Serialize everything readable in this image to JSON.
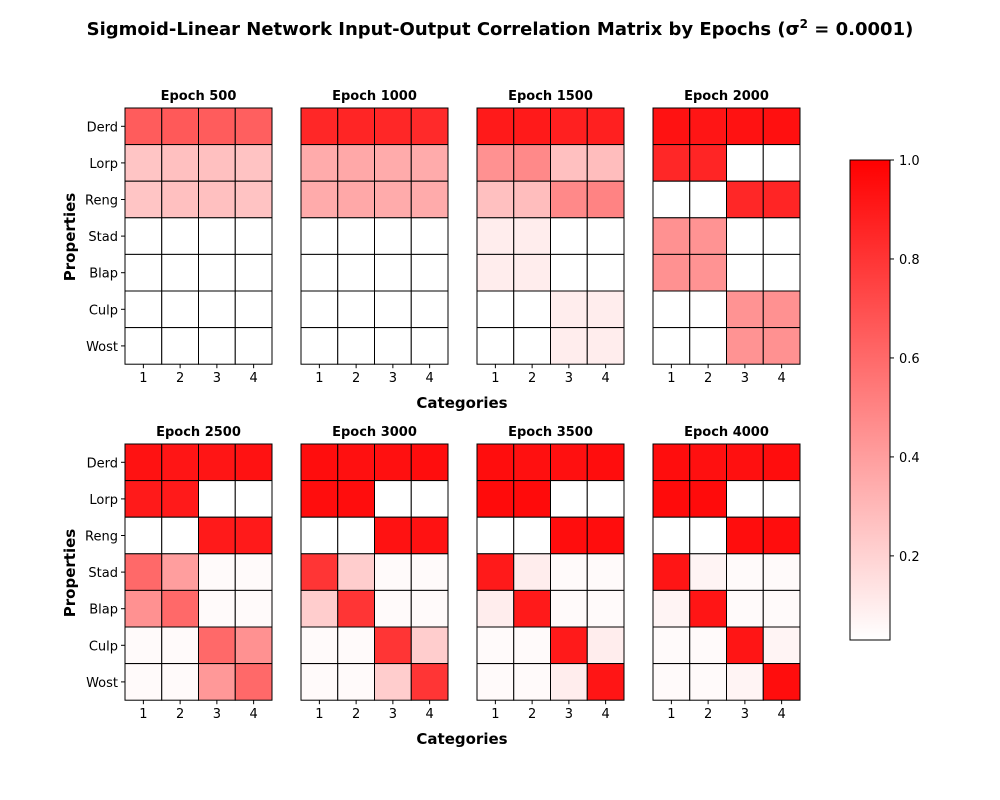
{
  "title_main": "Sigmoid-Linear Network Input-Output Correlation Matrix by Epochs (σ",
  "title_sup": "2",
  "title_tail": " = 0.0001)",
  "xlabel": "Categories",
  "ylabel": "Properties",
  "colors": {
    "high": "#ff0000",
    "low": "#ffffff",
    "grid": "#000000"
  },
  "chart_data": {
    "type": "heatmap",
    "title": "Sigmoid-Linear Network Input-Output Correlation Matrix by Epochs (σ² = 0.0001)",
    "xlabel": "Categories",
    "ylabel": "Properties",
    "rows": [
      "Derd",
      "Lorp",
      "Reng",
      "Stad",
      "Blap",
      "Culp",
      "Wost"
    ],
    "columns": [
      "1",
      "2",
      "3",
      "4"
    ],
    "colormap": "white-to-red",
    "colorbar": {
      "range": [
        0.03,
        1.0
      ],
      "ticks": [
        "0.2",
        "0.4",
        "0.6",
        "0.8",
        "1.0"
      ],
      "tick_values": [
        0.2,
        0.4,
        0.6,
        0.8,
        1.0
      ]
    },
    "panels": [
      {
        "label": "Epoch 500",
        "values": [
          [
            0.65,
            0.66,
            0.65,
            0.64
          ],
          [
            0.25,
            0.27,
            0.27,
            0.26
          ],
          [
            0.25,
            0.27,
            0.27,
            0.26
          ],
          [
            0.03,
            0.03,
            0.03,
            0.03
          ],
          [
            0.03,
            0.03,
            0.03,
            0.03
          ],
          [
            0.03,
            0.03,
            0.03,
            0.03
          ],
          [
            0.03,
            0.03,
            0.03,
            0.03
          ]
        ]
      },
      {
        "label": "Epoch 1000",
        "values": [
          [
            0.85,
            0.86,
            0.85,
            0.84
          ],
          [
            0.35,
            0.36,
            0.35,
            0.35
          ],
          [
            0.35,
            0.36,
            0.35,
            0.35
          ],
          [
            0.03,
            0.03,
            0.03,
            0.03
          ],
          [
            0.03,
            0.03,
            0.03,
            0.03
          ],
          [
            0.03,
            0.03,
            0.03,
            0.03
          ],
          [
            0.03,
            0.03,
            0.03,
            0.03
          ]
        ]
      },
      {
        "label": "Epoch 1500",
        "values": [
          [
            0.9,
            0.9,
            0.88,
            0.88
          ],
          [
            0.45,
            0.48,
            0.27,
            0.28
          ],
          [
            0.27,
            0.28,
            0.48,
            0.5
          ],
          [
            0.1,
            0.1,
            0.03,
            0.03
          ],
          [
            0.1,
            0.1,
            0.03,
            0.03
          ],
          [
            0.03,
            0.03,
            0.1,
            0.1
          ],
          [
            0.03,
            0.03,
            0.1,
            0.1
          ]
        ]
      },
      {
        "label": "Epoch 2000",
        "values": [
          [
            0.93,
            0.92,
            0.93,
            0.94
          ],
          [
            0.85,
            0.86,
            0.03,
            0.03
          ],
          [
            0.03,
            0.03,
            0.85,
            0.86
          ],
          [
            0.45,
            0.44,
            0.03,
            0.03
          ],
          [
            0.45,
            0.44,
            0.03,
            0.03
          ],
          [
            0.03,
            0.03,
            0.44,
            0.45
          ],
          [
            0.03,
            0.03,
            0.44,
            0.45
          ]
        ]
      },
      {
        "label": "Epoch 2500",
        "values": [
          [
            0.93,
            0.92,
            0.92,
            0.93
          ],
          [
            0.9,
            0.9,
            0.03,
            0.03
          ],
          [
            0.03,
            0.03,
            0.9,
            0.9
          ],
          [
            0.6,
            0.4,
            0.05,
            0.05
          ],
          [
            0.45,
            0.6,
            0.05,
            0.05
          ],
          [
            0.05,
            0.05,
            0.6,
            0.45
          ],
          [
            0.05,
            0.05,
            0.42,
            0.6
          ]
        ]
      },
      {
        "label": "Epoch 3000",
        "values": [
          [
            0.95,
            0.94,
            0.94,
            0.95
          ],
          [
            0.95,
            0.95,
            0.03,
            0.03
          ],
          [
            0.03,
            0.03,
            0.93,
            0.93
          ],
          [
            0.8,
            0.22,
            0.05,
            0.05
          ],
          [
            0.22,
            0.8,
            0.05,
            0.05
          ],
          [
            0.05,
            0.05,
            0.8,
            0.22
          ],
          [
            0.05,
            0.05,
            0.22,
            0.8
          ]
        ]
      },
      {
        "label": "Epoch 3500",
        "values": [
          [
            0.95,
            0.94,
            0.94,
            0.95
          ],
          [
            0.96,
            0.96,
            0.03,
            0.03
          ],
          [
            0.03,
            0.03,
            0.95,
            0.95
          ],
          [
            0.9,
            0.1,
            0.05,
            0.05
          ],
          [
            0.1,
            0.9,
            0.05,
            0.05
          ],
          [
            0.05,
            0.05,
            0.9,
            0.1
          ],
          [
            0.05,
            0.05,
            0.1,
            0.92
          ]
        ]
      },
      {
        "label": "Epoch 4000",
        "values": [
          [
            0.95,
            0.94,
            0.94,
            0.95
          ],
          [
            0.96,
            0.96,
            0.03,
            0.03
          ],
          [
            0.03,
            0.03,
            0.95,
            0.95
          ],
          [
            0.92,
            0.07,
            0.05,
            0.05
          ],
          [
            0.07,
            0.92,
            0.05,
            0.05
          ],
          [
            0.05,
            0.05,
            0.92,
            0.07
          ],
          [
            0.05,
            0.05,
            0.07,
            0.95
          ]
        ]
      }
    ]
  }
}
